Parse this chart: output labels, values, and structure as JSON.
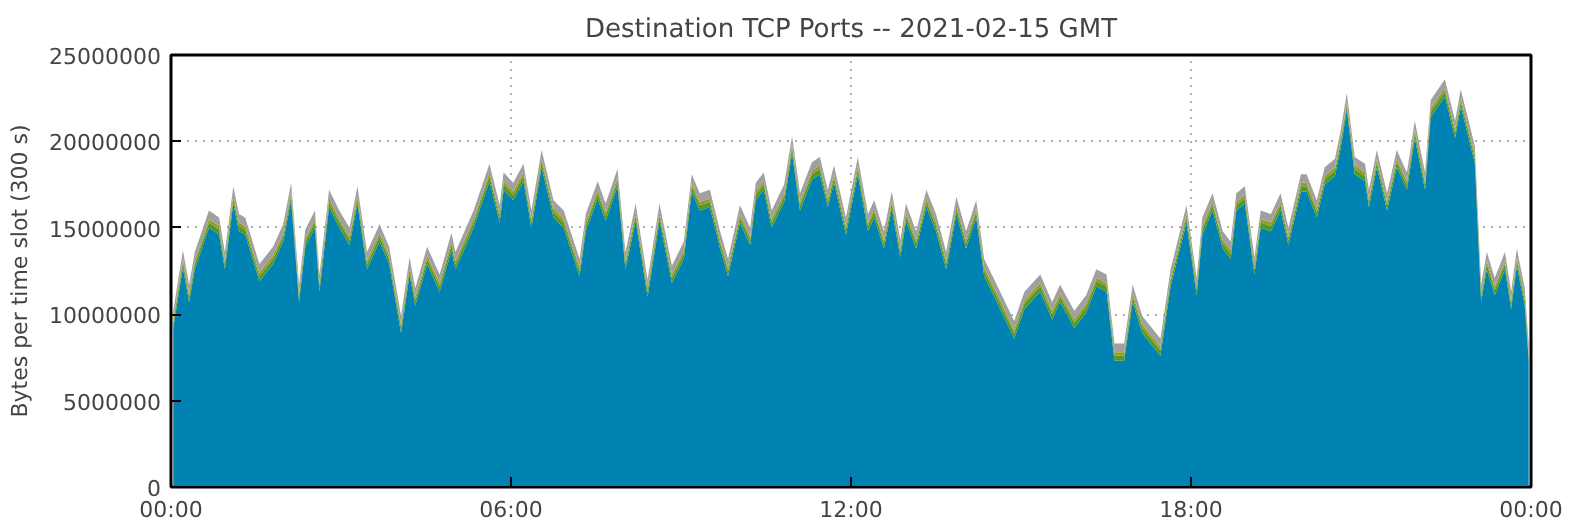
{
  "chart_data": {
    "type": "area",
    "stacked": true,
    "title": "Destination TCP Ports -- 2021-02-15 GMT",
    "ylabel": "Bytes per time slot (300 s)",
    "x": [
      0.04,
      0.21,
      0.32,
      0.42,
      0.67,
      0.85,
      0.95,
      1.1,
      1.2,
      1.31,
      1.56,
      1.8,
      1.98,
      2.12,
      2.26,
      2.37,
      2.54,
      2.62,
      2.79,
      2.97,
      3.15,
      3.29,
      3.46,
      3.68,
      3.85,
      4.06,
      4.21,
      4.31,
      4.52,
      4.74,
      4.95,
      5.02,
      5.34,
      5.62,
      5.8,
      5.87,
      6.04,
      6.22,
      6.36,
      6.54,
      6.75,
      6.93,
      7.21,
      7.32,
      7.53,
      7.67,
      7.88,
      8.02,
      8.2,
      8.41,
      8.62,
      8.84,
      9.05,
      9.19,
      9.33,
      9.51,
      9.69,
      9.83,
      10.04,
      10.22,
      10.32,
      10.46,
      10.6,
      10.82,
      10.96,
      11.1,
      11.31,
      11.45,
      11.59,
      11.7,
      11.91,
      12.12,
      12.3,
      12.41,
      12.58,
      12.72,
      12.87,
      12.97,
      13.15,
      13.33,
      13.5,
      13.68,
      13.86,
      14.03,
      14.21,
      14.35,
      14.53,
      14.88,
      15.06,
      15.34,
      15.55,
      15.69,
      15.94,
      16.15,
      16.33,
      16.51,
      16.65,
      16.82,
      16.97,
      17.14,
      17.46,
      17.64,
      17.92,
      18.1,
      18.2,
      18.38,
      18.56,
      18.7,
      18.8,
      18.95,
      19.12,
      19.23,
      19.41,
      19.58,
      19.72,
      19.94,
      20.04,
      20.22,
      20.36,
      20.54,
      20.64,
      20.75,
      20.89,
      21.07,
      21.14,
      21.28,
      21.46,
      21.63,
      21.81,
      21.95,
      22.13,
      22.23,
      22.48,
      22.66,
      22.76,
      22.9,
      23.01,
      23.12,
      23.22,
      23.36,
      23.54,
      23.65,
      23.75,
      23.89,
      23.96
    ],
    "series": [
      {
        "color": "#0083b3",
        "values": [
          9200000,
          12700000,
          10700000,
          12600000,
          15000000,
          14600000,
          12600000,
          16400000,
          14800000,
          14600000,
          11900000,
          12900000,
          14200000,
          16600000,
          10700000,
          13900000,
          15000000,
          11300000,
          16200000,
          15000000,
          14000000,
          16400000,
          12600000,
          14200000,
          12900000,
          8900000,
          12300000,
          10500000,
          12900000,
          11300000,
          13700000,
          12600000,
          15000000,
          17700000,
          15300000,
          17200000,
          16600000,
          17700000,
          15000000,
          18500000,
          15600000,
          15000000,
          12200000,
          14800000,
          16700000,
          15400000,
          17400000,
          12600000,
          15400000,
          11000000,
          15400000,
          11800000,
          13200000,
          17100000,
          16000000,
          16200000,
          13800000,
          12200000,
          15300000,
          14000000,
          16600000,
          17200000,
          15000000,
          16500000,
          19300000,
          16000000,
          17800000,
          18100000,
          16200000,
          17600000,
          14600000,
          18100000,
          14800000,
          15600000,
          13800000,
          16100000,
          13300000,
          15400000,
          13800000,
          16200000,
          14800000,
          12600000,
          15800000,
          13800000,
          15600000,
          12200000,
          11000000,
          8600000,
          10300000,
          11300000,
          9700000,
          10700000,
          9200000,
          10100000,
          11600000,
          11300000,
          7300000,
          7300000,
          10700000,
          8900000,
          7600000,
          11600000,
          15300000,
          11100000,
          14600000,
          16000000,
          13800000,
          13200000,
          16000000,
          16400000,
          12300000,
          15000000,
          14800000,
          16000000,
          14000000,
          17100000,
          17100000,
          15600000,
          17500000,
          18000000,
          19600000,
          21800000,
          18100000,
          17700000,
          16200000,
          18500000,
          16000000,
          18500000,
          17200000,
          20200000,
          17200000,
          21400000,
          22600000,
          20200000,
          22000000,
          20200000,
          18700000,
          10700000,
          12600000,
          11100000,
          12600000,
          10300000,
          12800000,
          10500000,
          7300000
        ]
      },
      {
        "color": "#4e9a2a",
        "values": [
          300000,
          300000,
          300000,
          300000,
          300000,
          300000,
          300000,
          300000,
          300000,
          300000,
          300000,
          300000,
          300000,
          300000,
          300000,
          300000,
          300000,
          300000,
          300000,
          300000,
          300000,
          300000,
          300000,
          300000,
          300000,
          300000,
          300000,
          300000,
          300000,
          300000,
          300000,
          300000,
          300000,
          300000,
          300000,
          300000,
          300000,
          300000,
          300000,
          300000,
          300000,
          300000,
          300000,
          300000,
          300000,
          300000,
          300000,
          300000,
          300000,
          300000,
          300000,
          300000,
          300000,
          300000,
          300000,
          300000,
          300000,
          300000,
          300000,
          300000,
          300000,
          300000,
          300000,
          300000,
          300000,
          300000,
          300000,
          300000,
          300000,
          300000,
          300000,
          300000,
          300000,
          300000,
          300000,
          300000,
          300000,
          300000,
          300000,
          300000,
          300000,
          300000,
          300000,
          300000,
          300000,
          300000,
          300000,
          300000,
          300000,
          300000,
          300000,
          300000,
          300000,
          300000,
          300000,
          300000,
          300000,
          300000,
          300000,
          300000,
          300000,
          300000,
          300000,
          300000,
          300000,
          300000,
          300000,
          300000,
          300000,
          300000,
          300000,
          300000,
          300000,
          300000,
          300000,
          300000,
          300000,
          300000,
          300000,
          300000,
          300000,
          300000,
          300000,
          300000,
          300000,
          300000,
          300000,
          300000,
          300000,
          300000,
          300000,
          300000,
          300000,
          300000,
          300000,
          300000,
          300000,
          300000,
          300000,
          300000,
          300000,
          300000,
          300000,
          300000,
          300000
        ]
      },
      {
        "color": "#9c9a1e",
        "values": [
          200000,
          200000,
          200000,
          200000,
          200000,
          200000,
          200000,
          200000,
          200000,
          200000,
          200000,
          200000,
          200000,
          200000,
          200000,
          200000,
          200000,
          200000,
          200000,
          200000,
          200000,
          200000,
          200000,
          200000,
          200000,
          200000,
          200000,
          200000,
          200000,
          200000,
          200000,
          200000,
          200000,
          200000,
          200000,
          200000,
          200000,
          200000,
          200000,
          200000,
          200000,
          200000,
          200000,
          200000,
          200000,
          200000,
          200000,
          200000,
          200000,
          200000,
          200000,
          200000,
          200000,
          200000,
          200000,
          200000,
          200000,
          200000,
          200000,
          200000,
          200000,
          200000,
          200000,
          200000,
          200000,
          200000,
          200000,
          200000,
          200000,
          200000,
          200000,
          200000,
          200000,
          200000,
          200000,
          200000,
          200000,
          200000,
          200000,
          200000,
          200000,
          200000,
          200000,
          200000,
          200000,
          200000,
          200000,
          200000,
          200000,
          200000,
          200000,
          200000,
          200000,
          200000,
          200000,
          200000,
          200000,
          200000,
          200000,
          200000,
          200000,
          200000,
          200000,
          200000,
          200000,
          200000,
          200000,
          200000,
          200000,
          200000,
          200000,
          200000,
          200000,
          200000,
          200000,
          200000,
          200000,
          200000,
          200000,
          200000,
          200000,
          200000,
          200000,
          200000,
          200000,
          200000,
          200000,
          200000,
          200000,
          200000,
          200000,
          200000,
          200000,
          200000,
          200000,
          200000,
          200000,
          200000,
          200000,
          200000,
          200000,
          200000,
          200000,
          200000,
          200000
        ]
      },
      {
        "color": "#a0a0a0",
        "values": [
          500000,
          500000,
          500000,
          500000,
          500000,
          500000,
          500000,
          500000,
          500000,
          500000,
          500000,
          500000,
          500000,
          500000,
          500000,
          500000,
          500000,
          500000,
          500000,
          500000,
          500000,
          500000,
          500000,
          500000,
          500000,
          500000,
          500000,
          500000,
          500000,
          500000,
          500000,
          500000,
          500000,
          500000,
          500000,
          500000,
          500000,
          500000,
          500000,
          500000,
          500000,
          500000,
          500000,
          500000,
          500000,
          500000,
          500000,
          500000,
          500000,
          500000,
          500000,
          500000,
          500000,
          500000,
          500000,
          500000,
          500000,
          500000,
          500000,
          500000,
          500000,
          500000,
          500000,
          500000,
          500000,
          500000,
          500000,
          500000,
          500000,
          500000,
          500000,
          500000,
          500000,
          500000,
          500000,
          500000,
          500000,
          500000,
          500000,
          500000,
          500000,
          500000,
          500000,
          500000,
          500000,
          500000,
          500000,
          500000,
          500000,
          500000,
          500000,
          500000,
          500000,
          500000,
          500000,
          500000,
          500000,
          500000,
          500000,
          500000,
          500000,
          500000,
          500000,
          500000,
          500000,
          500000,
          500000,
          500000,
          500000,
          500000,
          500000,
          500000,
          500000,
          500000,
          500000,
          500000,
          500000,
          500000,
          500000,
          500000,
          500000,
          500000,
          500000,
          500000,
          500000,
          500000,
          500000,
          500000,
          500000,
          500000,
          500000,
          500000,
          500000,
          500000,
          500000,
          500000,
          500000,
          500000,
          500000,
          500000,
          500000,
          500000,
          500000,
          500000,
          500000
        ]
      }
    ],
    "xlim": [
      0,
      24
    ],
    "xticks": [
      {
        "value": 0,
        "label": "00:00"
      },
      {
        "value": 6,
        "label": "06:00"
      },
      {
        "value": 12,
        "label": "12:00"
      },
      {
        "value": 18,
        "label": "18:00"
      },
      {
        "value": 24,
        "label": "00:00"
      }
    ],
    "ylim": [
      0,
      25000000
    ],
    "yticks": [
      0,
      5000000,
      10000000,
      15000000,
      20000000,
      25000000
    ],
    "grid": true
  }
}
